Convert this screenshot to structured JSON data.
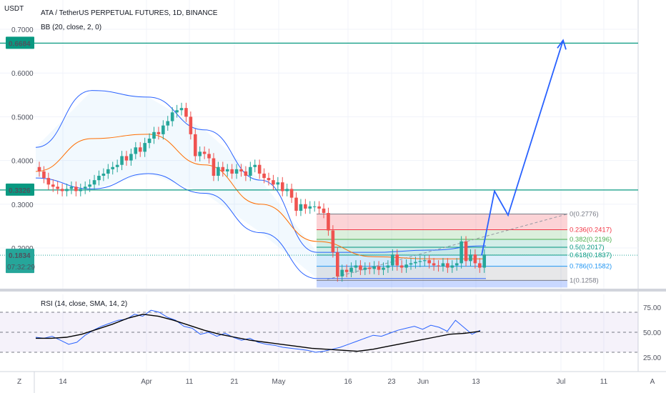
{
  "header": {
    "currency": "USDT",
    "title": "ATA / TetherUS PERPETUAL FUTURES, 1D, BINANCE",
    "indicator": "BB (20, close, 2, 0)"
  },
  "price_axis": {
    "ticks": [
      {
        "value": 0.7,
        "label": "0.7000"
      },
      {
        "value": 0.6,
        "label": "0.6000"
      },
      {
        "value": 0.5,
        "label": "0.5000"
      },
      {
        "value": 0.4,
        "label": "0.4000"
      },
      {
        "value": 0.3,
        "label": "0.3000"
      },
      {
        "value": 0.2,
        "label": "0.2000"
      }
    ],
    "tags": [
      {
        "name": "resistance-tag-upper",
        "value": 0.6684,
        "label": "0.6684",
        "color": "#089981"
      },
      {
        "name": "support-tag-middle",
        "value": 0.3326,
        "label": "0.3326",
        "color": "#089981"
      },
      {
        "name": "last-price-tag",
        "value": 0.1834,
        "label": "0.1834",
        "sublabel": "07:32:29",
        "color": "#26a69a"
      }
    ]
  },
  "time_axis": {
    "labels": [
      "14",
      "Apr",
      "11",
      "21",
      "May",
      "16",
      "23",
      "Jun",
      "13",
      "Jul",
      "11"
    ],
    "left_button": "Z",
    "right_button": "A"
  },
  "rsi": {
    "label": "RSI (14, close, SMA, 14, 2)",
    "ticks": [
      "75.00",
      "50.00",
      "25.00"
    ]
  },
  "fib_levels": [
    {
      "label": "0(0.2776)",
      "value": 0.2776,
      "color": "#787b86"
    },
    {
      "label": "0.236(0.2417)",
      "value": 0.2417,
      "color": "#f23645"
    },
    {
      "label": "0.382(0.2196)",
      "value": 0.2196,
      "color": "#4caf50"
    },
    {
      "label": "0.5(0.2017)",
      "value": 0.2017,
      "color": "#089981"
    },
    {
      "label": "0.618(0.1837)",
      "value": 0.1837,
      "color": "#089981"
    },
    {
      "label": "0.786(0.1582)",
      "value": 0.1582,
      "color": "#2196f3"
    },
    {
      "label": "1(0.1258)",
      "value": 0.1258,
      "color": "#787b86"
    }
  ],
  "colors": {
    "up": "#26a69a",
    "down": "#ef5350",
    "bb_band": "#2962ff",
    "bb_basis": "#ff6d00",
    "horizontal_line": "#089981",
    "projection": "#2962ff",
    "rsi_line": "#2962ff",
    "rsi_sma": "#000000"
  },
  "chart_data": [
    {
      "type": "candlestick",
      "title": "ATA / TetherUS PERPETUAL FUTURES, 1D, BINANCE",
      "ylabel": "USDT",
      "ylim": [
        0.1,
        0.75
      ],
      "x_ticks": [
        "14",
        "Apr",
        "11",
        "21",
        "May",
        "16",
        "23",
        "Jun",
        "13",
        "Jul",
        "11"
      ],
      "close": [
        0.375,
        0.36,
        0.345,
        0.34,
        0.335,
        0.33,
        0.335,
        0.34,
        0.33,
        0.335,
        0.34,
        0.345,
        0.355,
        0.365,
        0.37,
        0.38,
        0.385,
        0.39,
        0.41,
        0.4,
        0.415,
        0.43,
        0.42,
        0.44,
        0.45,
        0.465,
        0.46,
        0.48,
        0.49,
        0.51,
        0.515,
        0.52,
        0.5,
        0.46,
        0.41,
        0.42,
        0.415,
        0.405,
        0.365,
        0.385,
        0.375,
        0.38,
        0.37,
        0.38,
        0.375,
        0.365,
        0.385,
        0.39,
        0.37,
        0.36,
        0.355,
        0.345,
        0.35,
        0.33,
        0.335,
        0.315,
        0.285,
        0.3,
        0.29,
        0.295,
        0.295,
        0.29,
        0.28,
        0.24,
        0.19,
        0.135,
        0.15,
        0.145,
        0.155,
        0.16,
        0.15,
        0.155,
        0.152,
        0.158,
        0.15,
        0.155,
        0.16,
        0.185,
        0.16,
        0.155,
        0.162,
        0.165,
        0.168,
        0.17,
        0.172,
        0.165,
        0.16,
        0.158,
        0.165,
        0.155,
        0.16,
        0.165,
        0.215,
        0.17,
        0.185,
        0.165,
        0.155,
        0.185
      ],
      "series": [
        {
          "name": "BB (20, close, 2, 0) upper",
          "values": [
            0.43,
            0.56,
            0.545,
            0.47,
            0.355,
            0.19,
            0.19,
            0.195,
            0.205
          ]
        },
        {
          "name": "BB (20, close, 2, 0) basis",
          "values": [
            0.375,
            0.45,
            0.46,
            0.39,
            0.3,
            0.215,
            0.18,
            0.175,
            0.175
          ]
        },
        {
          "name": "BB (20, close, 2, 0) lower",
          "values": [
            0.36,
            0.335,
            0.37,
            0.325,
            0.235,
            0.13,
            0.13,
            0.13,
            0.13
          ]
        }
      ],
      "horizontal_lines": [
        0.6684,
        0.3326
      ],
      "last_price": 0.1834,
      "projection": [
        [
          0.183,
          0.33
        ],
        [
          0.275,
          0.675
        ]
      ]
    },
    {
      "type": "line",
      "title": "RSI (14, close, SMA, 14, 2)",
      "ylim": [
        15,
        85
      ],
      "y_ticks": [
        75,
        50,
        25
      ],
      "series": [
        {
          "name": "RSI",
          "values": [
            45,
            44,
            46,
            42,
            38,
            40,
            47,
            52,
            56,
            59,
            62,
            63,
            68,
            66,
            72,
            70,
            65,
            62,
            56,
            54,
            48,
            50,
            46,
            49,
            45,
            42,
            44,
            40,
            38,
            37,
            35,
            34,
            33,
            32,
            30,
            31,
            33,
            35,
            38,
            41,
            44,
            47,
            46,
            49,
            52,
            54,
            56,
            53,
            57,
            55,
            51,
            62,
            55,
            48,
            52
          ]
        },
        {
          "name": "SMA",
          "values": [
            44,
            44,
            45,
            48,
            53,
            58,
            64,
            68,
            66,
            62,
            57,
            52,
            48,
            45,
            42,
            40,
            38,
            36,
            34,
            33,
            32,
            31,
            33,
            36,
            39,
            42,
            45,
            48,
            49,
            51
          ]
        }
      ],
      "bands": [
        70,
        50,
        30
      ]
    }
  ]
}
